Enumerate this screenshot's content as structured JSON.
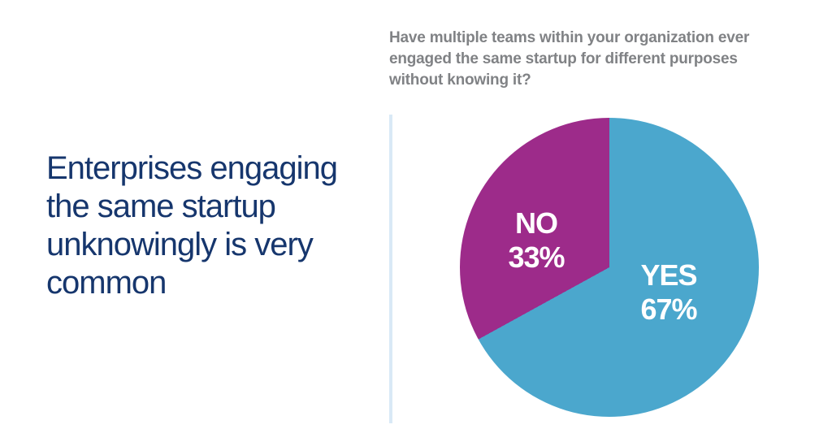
{
  "headline": {
    "text": "Enterprises engaging\nthe same startup\nunknowingly is very\ncommon",
    "color": "#16366D"
  },
  "question": {
    "text": "Have multiple teams within your organization ever\nengaged the same startup for different purposes\nwithout knowing it?",
    "color": "#808285"
  },
  "divider": {
    "color": "#D9E9F6"
  },
  "chart_data": {
    "type": "pie",
    "title": "Have multiple teams within your organization ever engaged the same startup for different purposes without knowing it?",
    "start_angle_deg": 0,
    "direction": "clockwise",
    "legend_position": "none",
    "label_color": "#FFFFFF",
    "segments": [
      {
        "label": "YES",
        "value": 67,
        "pct_label": "67%",
        "color": "#4BA7CD"
      },
      {
        "label": "NO",
        "value": 33,
        "pct_label": "33%",
        "color": "#9D2B8A"
      }
    ]
  }
}
